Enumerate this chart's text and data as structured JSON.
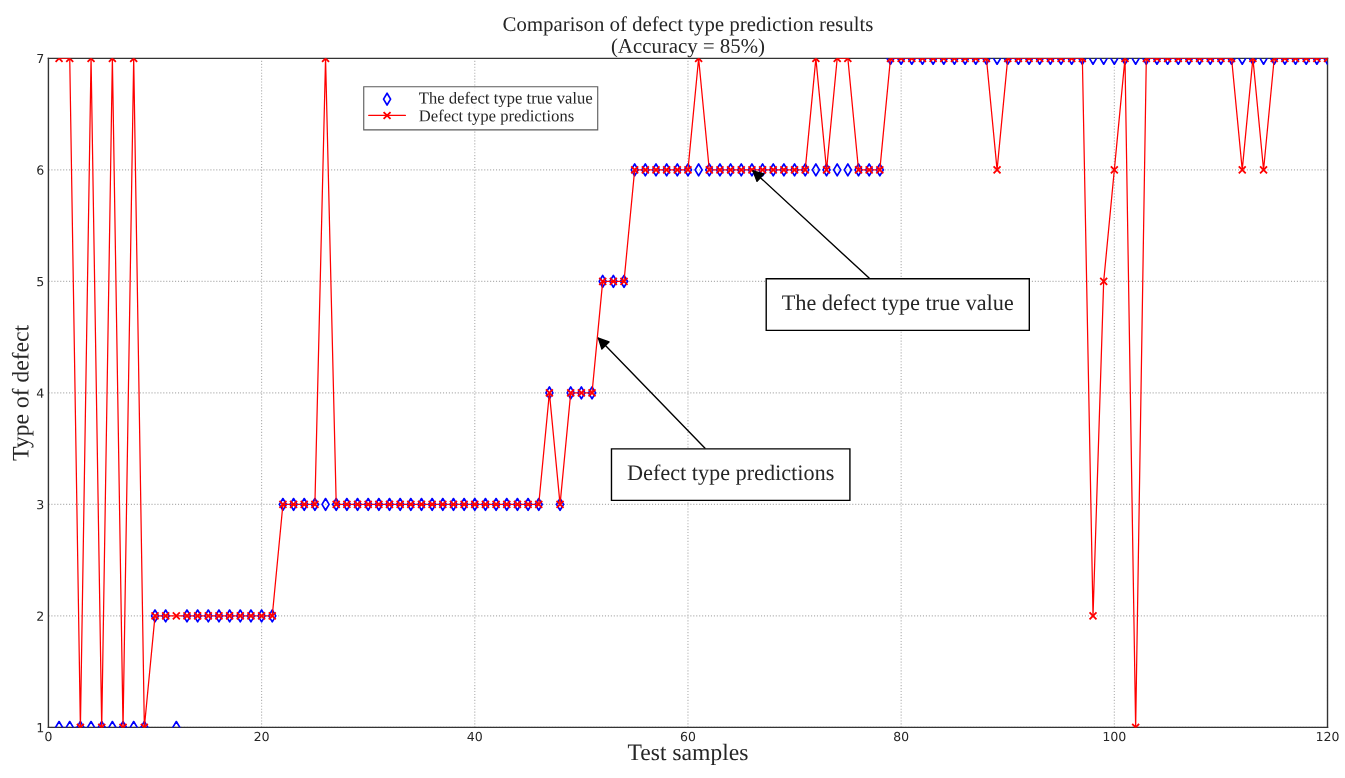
{
  "chart_data": {
    "type": "line",
    "title": "Comparison of defect type prediction results\n(Accuracy = 85%)",
    "xlabel": "Test samples",
    "ylabel": "Type of defect",
    "x": [
      1,
      2,
      3,
      4,
      5,
      6,
      7,
      8,
      9,
      10,
      11,
      12,
      13,
      14,
      15,
      16,
      17,
      18,
      19,
      20,
      21,
      22,
      23,
      24,
      25,
      26,
      27,
      28,
      29,
      30,
      31,
      32,
      33,
      34,
      35,
      36,
      37,
      38,
      39,
      40,
      41,
      42,
      43,
      44,
      45,
      46,
      47,
      48,
      49,
      50,
      51,
      52,
      53,
      54,
      55,
      56,
      57,
      58,
      59,
      60,
      61,
      62,
      63,
      64,
      65,
      66,
      67,
      68,
      69,
      70,
      71,
      72,
      73,
      74,
      75,
      76,
      77,
      78,
      79,
      80,
      81,
      82,
      83,
      84,
      85,
      86,
      87,
      88,
      89,
      90,
      91,
      92,
      93,
      94,
      95,
      96,
      97,
      98,
      99,
      100,
      101,
      102,
      103,
      104,
      105,
      106,
      107,
      108,
      109,
      110,
      111,
      112,
      113,
      114,
      115,
      116,
      117,
      118,
      119,
      120
    ],
    "series": [
      {
        "name": "The defect type true value",
        "type": "scatter",
        "marker": "diamond",
        "color": "#0000ff",
        "values": [
          1,
          1,
          1,
          1,
          1,
          1,
          1,
          1,
          1,
          2,
          2,
          1,
          2,
          2,
          2,
          2,
          2,
          2,
          2,
          2,
          2,
          3,
          3,
          3,
          3,
          3,
          3,
          3,
          3,
          3,
          3,
          3,
          3,
          3,
          3,
          3,
          3,
          3,
          3,
          3,
          3,
          3,
          3,
          3,
          3,
          3,
          4,
          3,
          4,
          4,
          4,
          5,
          5,
          5,
          6,
          6,
          6,
          6,
          6,
          6,
          6,
          6,
          6,
          6,
          6,
          6,
          6,
          6,
          6,
          6,
          6,
          6,
          6,
          6,
          6,
          6,
          6,
          6,
          7,
          7,
          7,
          7,
          7,
          7,
          7,
          7,
          7,
          7,
          7,
          7,
          7,
          7,
          7,
          7,
          7,
          7,
          7,
          7,
          7,
          7,
          7,
          7,
          7,
          7,
          7,
          7,
          7,
          7,
          7,
          7,
          7,
          7,
          7,
          7,
          7,
          7,
          7,
          7,
          7,
          7
        ]
      },
      {
        "name": "Defect type predictions",
        "marker": "cross",
        "line_style": "solid",
        "color": "#ff0000",
        "values": [
          7,
          7,
          1,
          7,
          1,
          7,
          1,
          7,
          1,
          2,
          2,
          2,
          2,
          2,
          2,
          2,
          2,
          2,
          2,
          2,
          2,
          3,
          3,
          3,
          3,
          7,
          3,
          3,
          3,
          3,
          3,
          3,
          3,
          3,
          3,
          3,
          3,
          3,
          3,
          3,
          3,
          3,
          3,
          3,
          3,
          3,
          4,
          3,
          4,
          4,
          4,
          5,
          5,
          5,
          6,
          6,
          6,
          6,
          6,
          6,
          7,
          6,
          6,
          6,
          6,
          6,
          6,
          6,
          6,
          6,
          6,
          7,
          6,
          7,
          7,
          6,
          6,
          6,
          7,
          7,
          7,
          7,
          7,
          7,
          7,
          7,
          7,
          7,
          6,
          7,
          7,
          7,
          7,
          7,
          7,
          7,
          7,
          2,
          5,
          6,
          7,
          1,
          7,
          7,
          7,
          7,
          7,
          7,
          7,
          7,
          7,
          6,
          7,
          6,
          7,
          7,
          7,
          7,
          7,
          7
        ]
      }
    ],
    "xlim": [
      0,
      120
    ],
    "xticks": [
      0,
      20,
      40,
      60,
      80,
      100,
      120
    ],
    "ylim": [
      1,
      7
    ],
    "yticks": [
      1,
      2,
      3,
      4,
      5,
      6,
      7
    ],
    "grid": true,
    "legend": "top left",
    "annotations": [
      {
        "text": "The defect type true value",
        "x": 66,
        "y": 6
      },
      {
        "text": "Defect type predictions",
        "x": 51.5,
        "y": 4.5
      }
    ]
  }
}
